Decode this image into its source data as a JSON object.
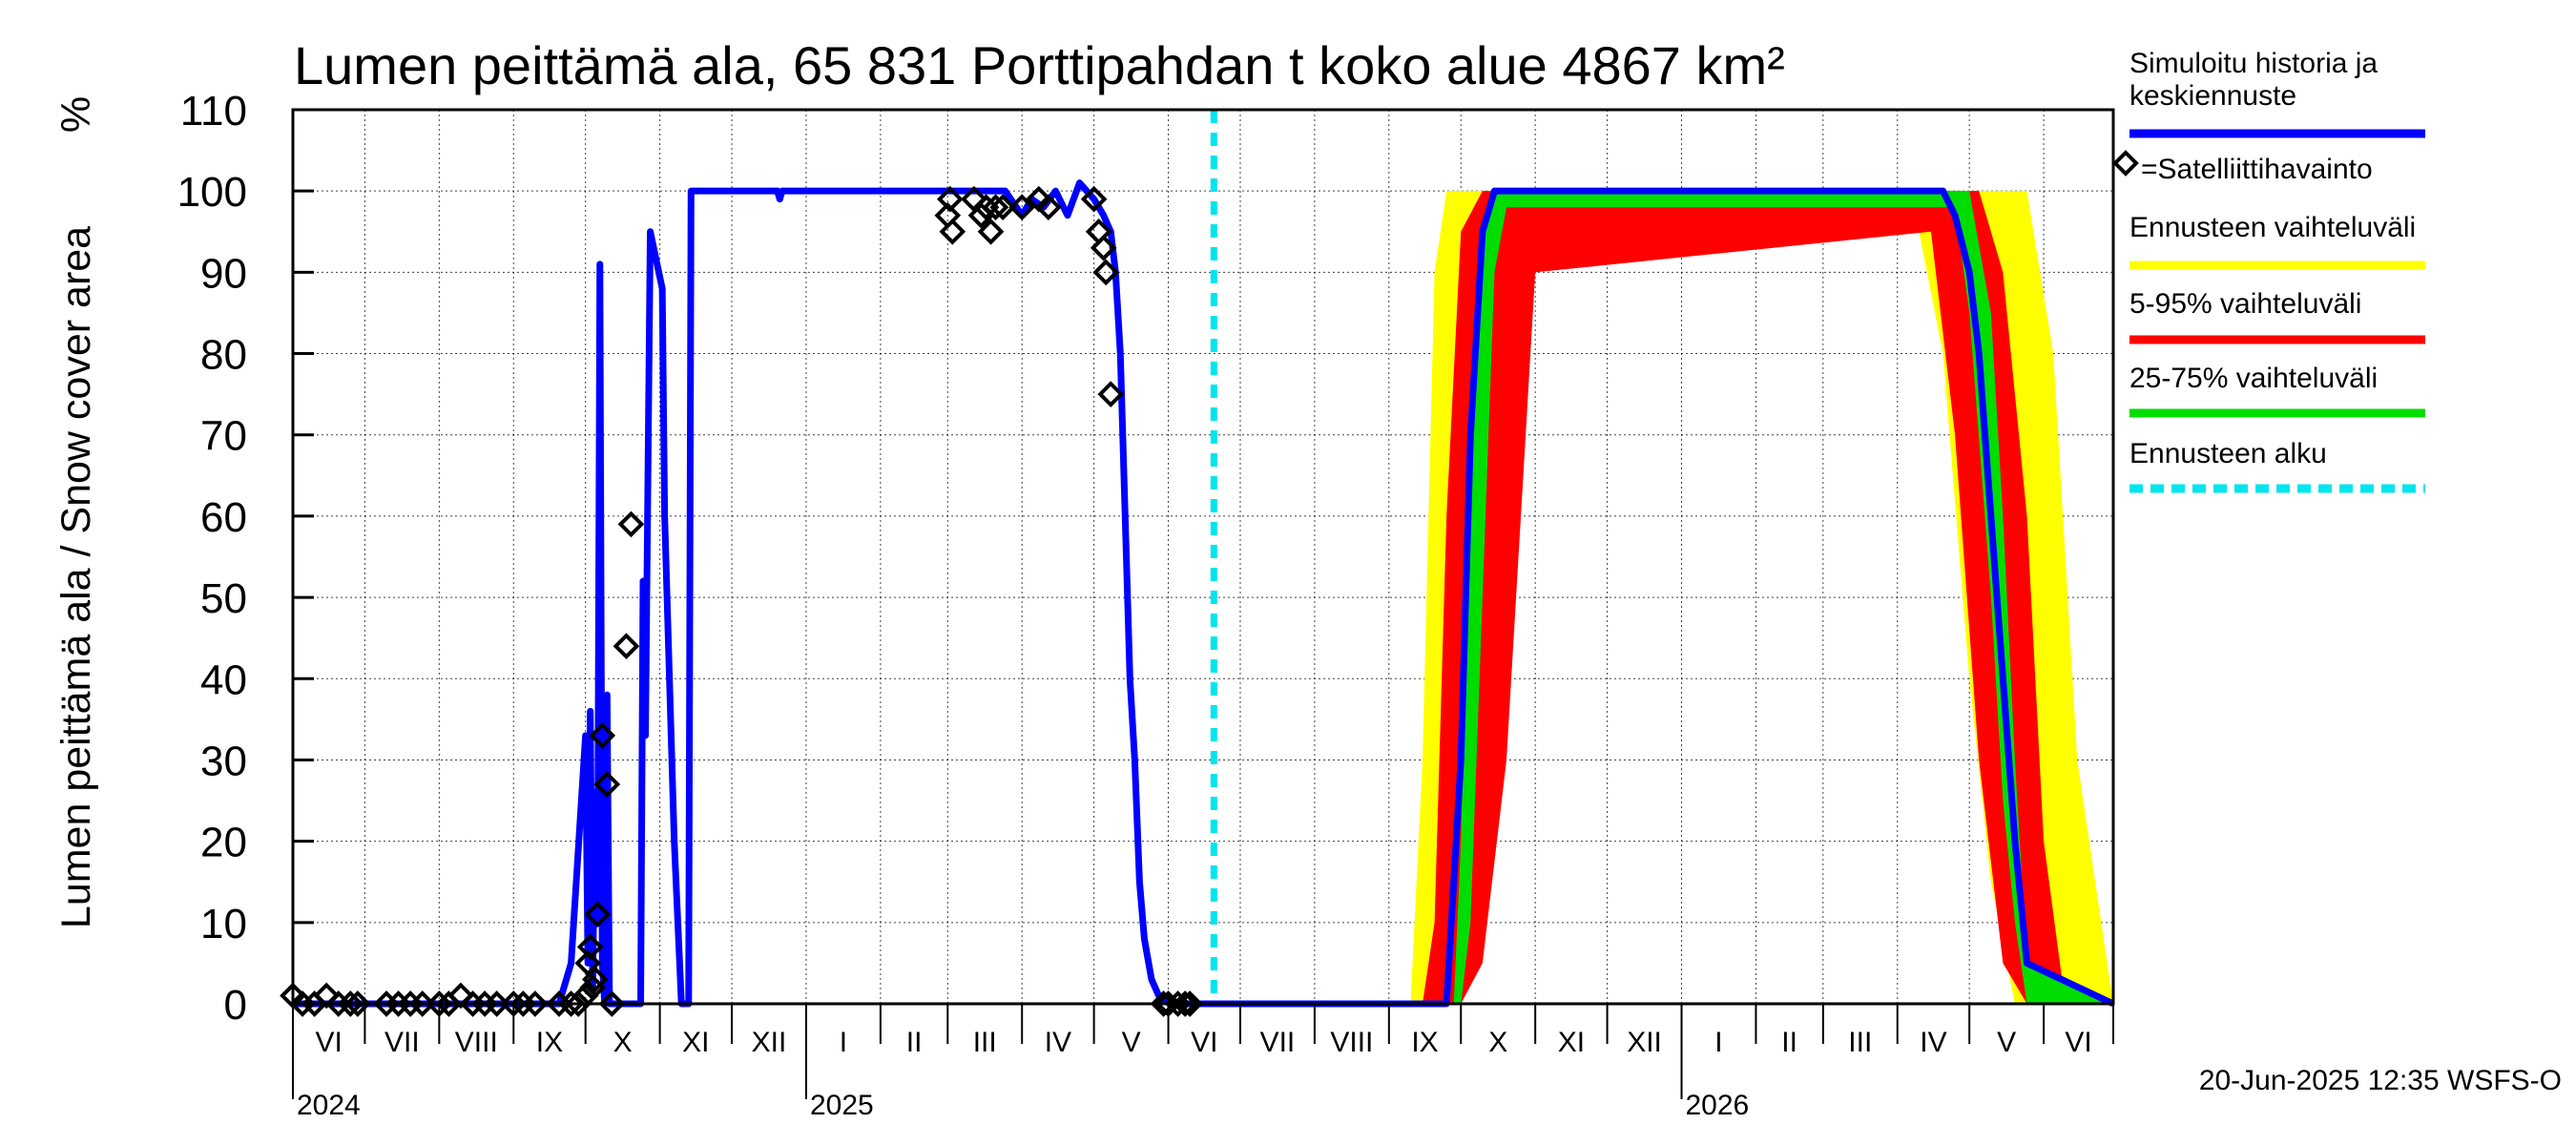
{
  "chart_data": {
    "type": "area",
    "title": "Lumen peittämä ala, 65 831 Porttipahdan t koko alue 4867 km²",
    "ylabel": "Lumen peittämä ala / Snow cover area",
    "yunit": "%",
    "ylim": [
      0,
      110
    ],
    "yticks": [
      "0",
      "10",
      "20",
      "30",
      "40",
      "50",
      "60",
      "70",
      "80",
      "90",
      "100",
      "110"
    ],
    "xlim": [
      "2024-06-01",
      "2026-06-30"
    ],
    "grid": true,
    "legend_placement": "right",
    "month_labels": [
      "VI",
      "VII",
      "VIII",
      "IX",
      "X",
      "XI",
      "XII",
      "I",
      "II",
      "III",
      "IV",
      "V",
      "VI",
      "VII",
      "VIII",
      "IX",
      "X",
      "XI",
      "XII",
      "I",
      "II",
      "III",
      "IV",
      "V",
      "VI"
    ],
    "year_labels": [
      "2024",
      "2025",
      "2026"
    ],
    "forecast_start": "2025-06-20",
    "series": [
      {
        "name": "Simuloitu historia ja keskiennuste",
        "color": "#0000ff",
        "x": [
          "2024-06-01",
          "2024-09-20",
          "2024-09-25",
          "2024-10-01",
          "2024-10-02",
          "2024-10-03",
          "2024-10-04",
          "2024-10-05",
          "2024-10-06",
          "2024-10-07",
          "2024-10-08",
          "2024-10-09",
          "2024-10-10",
          "2024-10-11",
          "2024-10-12",
          "2024-10-13",
          "2024-10-14",
          "2024-10-15",
          "2024-10-16",
          "2024-10-17",
          "2024-10-20",
          "2024-10-24",
          "2024-10-25",
          "2024-10-26",
          "2024-10-28",
          "2024-11-02",
          "2024-11-03",
          "2024-11-05",
          "2024-11-07",
          "2024-11-10",
          "2024-11-13",
          "2024-11-14",
          "2024-11-17",
          "2024-12-20",
          "2024-12-21",
          "2024-12-22",
          "2025-03-25",
          "2025-04-01",
          "2025-04-05",
          "2025-04-10",
          "2025-04-15",
          "2025-04-20",
          "2025-04-25",
          "2025-05-01",
          "2025-05-05",
          "2025-05-08",
          "2025-05-10",
          "2025-05-12",
          "2025-05-14",
          "2025-05-16",
          "2025-05-18",
          "2025-05-20",
          "2025-05-22",
          "2025-05-25",
          "2025-05-28",
          "2025-06-02",
          "2025-06-10",
          "2025-06-20",
          "2025-09-25",
          "2025-10-01",
          "2025-10-05",
          "2025-10-10",
          "2025-10-15",
          "2025-10-20",
          "2026-04-20",
          "2026-04-25",
          "2026-05-01",
          "2026-05-05",
          "2026-05-10",
          "2026-05-15",
          "2026-05-20",
          "2026-05-25",
          "2026-06-30"
        ],
        "y": [
          0,
          0,
          5,
          33,
          5,
          36,
          2,
          26,
          10,
          91,
          5,
          0,
          38,
          0,
          0,
          0,
          0,
          0,
          0,
          0,
          0,
          0,
          52,
          33,
          95,
          88,
          60,
          40,
          20,
          0,
          0,
          100,
          100,
          100,
          99,
          100,
          100,
          97,
          99,
          98,
          100,
          97,
          101,
          99,
          97,
          95,
          90,
          80,
          60,
          40,
          30,
          15,
          8,
          3,
          1,
          0,
          0,
          0,
          0,
          30,
          70,
          95,
          100,
          100,
          100,
          97,
          90,
          80,
          60,
          40,
          20,
          5,
          0
        ]
      }
    ],
    "bands": [
      {
        "name": "Ennusteen vaihteluväli",
        "color": "#ffff00",
        "x": [
          "2025-06-20",
          "2025-09-10",
          "2025-09-15",
          "2025-09-20",
          "2025-09-25",
          "2025-10-01",
          "2025-10-10",
          "2025-10-20",
          "2025-11-01",
          "2026-04-10",
          "2026-04-20",
          "2026-05-01",
          "2026-05-10",
          "2026-05-20",
          "2026-05-25",
          "2026-06-05",
          "2026-06-15",
          "2026-06-30"
        ],
        "low": [
          0,
          0,
          0,
          0,
          0,
          0,
          10,
          60,
          95,
          95,
          80,
          40,
          15,
          0,
          0,
          0,
          0,
          0
        ],
        "high": [
          0,
          0,
          30,
          90,
          100,
          100,
          100,
          100,
          100,
          100,
          100,
          100,
          100,
          100,
          100,
          80,
          30,
          0
        ]
      },
      {
        "name": "5-95% vaihteluväli",
        "color": "#ff0000",
        "x": [
          "2025-06-20",
          "2025-09-15",
          "2025-09-20",
          "2025-09-25",
          "2025-10-01",
          "2025-10-10",
          "2025-10-20",
          "2025-11-01",
          "2026-04-15",
          "2026-04-25",
          "2026-05-05",
          "2026-05-15",
          "2026-05-25",
          "2026-06-01",
          "2026-06-10",
          "2026-06-30"
        ],
        "low": [
          0,
          0,
          0,
          0,
          0,
          5,
          30,
          90,
          95,
          70,
          30,
          5,
          0,
          0,
          0,
          0
        ],
        "high": [
          0,
          0,
          10,
          60,
          95,
          100,
          100,
          100,
          100,
          100,
          100,
          90,
          60,
          20,
          0,
          0
        ]
      },
      {
        "name": "25-75% vaihteluväli",
        "color": "#00dd00",
        "x": [
          "2025-06-20",
          "2025-09-28",
          "2025-10-01",
          "2025-10-05",
          "2025-10-10",
          "2025-10-15",
          "2025-10-20",
          "2026-04-25",
          "2026-05-01",
          "2026-05-10",
          "2026-05-15",
          "2026-05-20",
          "2026-05-25",
          "2026-06-30"
        ],
        "low": [
          0,
          0,
          0,
          10,
          50,
          90,
          98,
          98,
          85,
          50,
          25,
          10,
          0,
          0
        ],
        "high": [
          0,
          0,
          20,
          70,
          95,
          100,
          100,
          100,
          100,
          85,
          60,
          30,
          5,
          0
        ]
      }
    ],
    "observations": {
      "name": "=Satelliittihavainto",
      "x": [
        "2024-06-01",
        "2024-06-05",
        "2024-06-10",
        "2024-06-15",
        "2024-06-20",
        "2024-06-25",
        "2024-06-28",
        "2024-07-10",
        "2024-07-15",
        "2024-07-20",
        "2024-07-25",
        "2024-08-01",
        "2024-08-05",
        "2024-08-10",
        "2024-08-15",
        "2024-08-20",
        "2024-08-25",
        "2024-09-01",
        "2024-09-05",
        "2024-09-10",
        "2024-09-20",
        "2024-09-25",
        "2024-09-28",
        "2024-10-01",
        "2024-10-02",
        "2024-10-03",
        "2024-10-04",
        "2024-10-05",
        "2024-10-06",
        "2024-10-08",
        "2024-10-10",
        "2024-10-12",
        "2024-10-18",
        "2024-10-20",
        "2025-03-01",
        "2025-03-02",
        "2025-03-03",
        "2025-03-12",
        "2025-03-15",
        "2025-03-17",
        "2025-03-19",
        "2025-03-21",
        "2025-03-24",
        "2025-04-01",
        "2025-04-08",
        "2025-04-12",
        "2025-05-01",
        "2025-05-03",
        "2025-05-05",
        "2025-05-06",
        "2025-05-08",
        "2025-05-30",
        "2025-06-01",
        "2025-06-05",
        "2025-06-08",
        "2025-06-10"
      ],
      "y": [
        1,
        0,
        0,
        1,
        0,
        0,
        0,
        0,
        0,
        0,
        0,
        0,
        0,
        1,
        0,
        0,
        0,
        0,
        0,
        0,
        0,
        0,
        0,
        1,
        5,
        7,
        2,
        3,
        11,
        33,
        27,
        0,
        44,
        59,
        97,
        99,
        95,
        99,
        97,
        98,
        95,
        98,
        98,
        98,
        99,
        98,
        99,
        95,
        93,
        90,
        75,
        0,
        0,
        0,
        0,
        0
      ]
    }
  },
  "legend": {
    "items": [
      {
        "label": "Simuloitu historia ja\nkeskiennuste",
        "color": "#0000ff",
        "kind": "line"
      },
      {
        "label": "=Satelliittihavainto",
        "color": "#000000",
        "kind": "marker"
      },
      {
        "label": "Ennusteen vaihteluväli",
        "color": "#ffff00",
        "kind": "line"
      },
      {
        "label": "5-95% vaihteluväli",
        "color": "#ff0000",
        "kind": "line"
      },
      {
        "label": "25-75% vaihteluväli",
        "color": "#00dd00",
        "kind": "line"
      },
      {
        "label": "Ennusteen alku",
        "color": "#00e5ee",
        "kind": "dashed"
      }
    ]
  },
  "footer": "20-Jun-2025 12:35 WSFS-O"
}
